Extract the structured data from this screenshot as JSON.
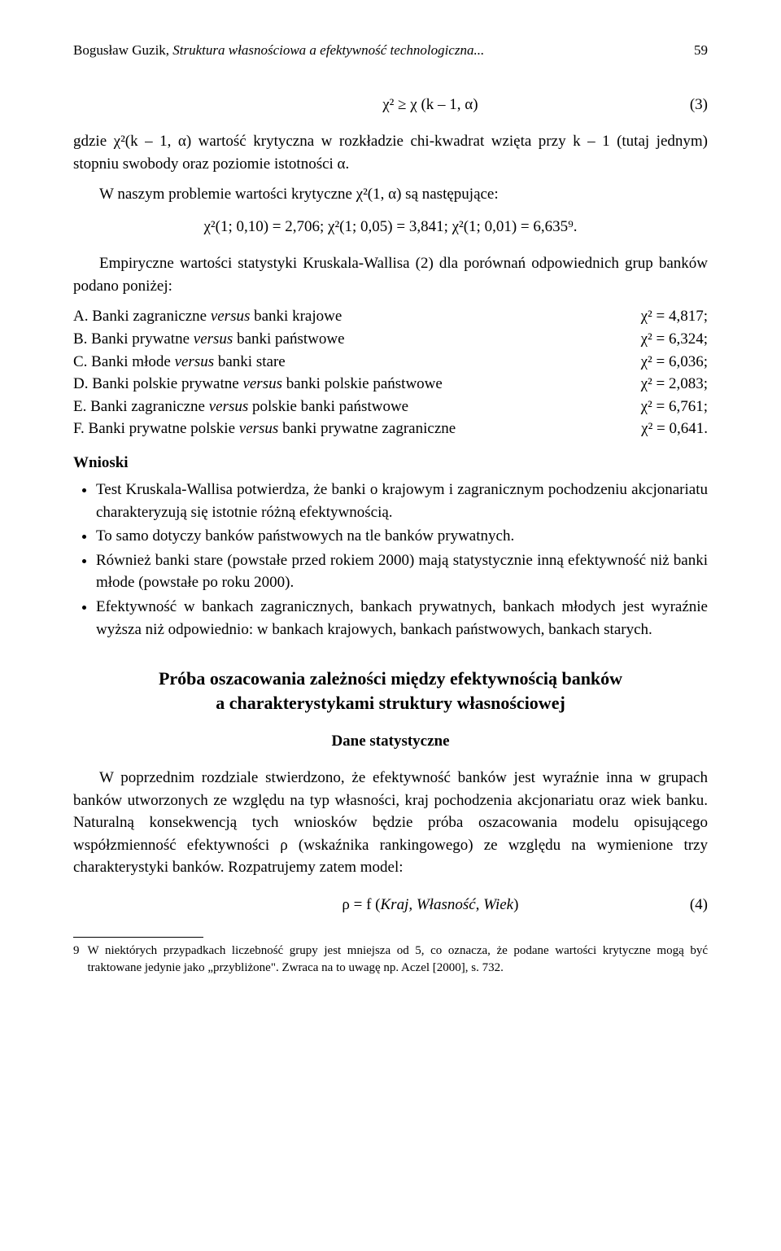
{
  "header": {
    "author": "Bogusław Guzik, ",
    "title_fragment": "Struktura własnościowa a efektywność technologiczna...",
    "page_number": "59"
  },
  "formula3": {
    "expr": "χ² ≥ χ (k – 1, α)",
    "num": "(3)"
  },
  "para1": "gdzie χ²(k – 1, α) wartość krytyczna w rozkładzie chi-kwadrat wzięta przy k – 1 (tutaj jednym) stopniu swobody oraz poziomie istotności α.",
  "para2": "W naszym problemie wartości krytyczne χ²(1, α) są następujące:",
  "chi_values": "χ²(1; 0,10) = 2,706; χ²(1; 0,05) = 3,841; χ²(1; 0,01) = 6,635⁹.",
  "para3": "Empiryczne wartości statystyki Kruskala-Wallisa (2) dla porównań odpowiednich grup banków podano poniżej:",
  "comparisons": [
    {
      "left_label": "A. Banki zagraniczne ",
      "left_italic": "versus",
      "left_rest": " banki krajowe",
      "right": "χ² = 4,817;"
    },
    {
      "left_label": "B. Banki prywatne ",
      "left_italic": "versus",
      "left_rest": " banki państwowe",
      "right": "χ² = 6,324;"
    },
    {
      "left_label": "C. Banki młode ",
      "left_italic": "versus",
      "left_rest": " banki stare",
      "right": "χ² = 6,036;"
    },
    {
      "left_label": "D. Banki polskie prywatne ",
      "left_italic": "versus",
      "left_rest": " banki polskie państwowe",
      "right": "χ² = 2,083;"
    },
    {
      "left_label": "E. Banki zagraniczne ",
      "left_italic": "versus",
      "left_rest": " polskie banki państwowe",
      "right": "χ² = 6,761;"
    },
    {
      "left_label": "F. Banki prywatne polskie ",
      "left_italic": "versus",
      "left_rest": " banki prywatne zagraniczne",
      "right": "χ² = 0,641."
    }
  ],
  "wnioski_label": "Wnioski",
  "bullets": [
    "Test Kruskala-Wallisa potwierdza, że banki o krajowym i zagranicznym pochodzeniu akcjonariatu charakteryzują się istotnie różną efektywnością.",
    "To samo dotyczy banków państwowych na tle banków prywatnych.",
    "Również banki stare (powstałe przed rokiem 2000) mają statystycznie inną efektywność niż banki młode (powstałe po roku 2000).",
    "Efektywność w bankach zagranicznych, bankach prywatnych, bankach młodych jest wyraźnie wyższa niż odpowiednio: w bankach krajowych, bankach państwowych, bankach starych."
  ],
  "section_title_line1": "Próba oszacowania zależności między efektywnością banków",
  "section_title_line2": "a charakterystykami struktury własnościowej",
  "sub_title": "Dane statystyczne",
  "para4": "W poprzednim rozdziale stwierdzono, że efektywność banków jest wyraźnie inna w grupach banków utworzonych ze względu na typ własności, kraj pochodzenia akcjonariatu oraz wiek banku. Naturalną konsekwencją tych wniosków będzie próba oszacowania modelu opisującego współzmienność efektywności ρ (wskaźnika rankingowego) ze względu na wymienione trzy charakterystyki banków. Rozpatrujemy zatem model:",
  "formula4": {
    "expr_prefix": "ρ = f (",
    "expr_args": "Kraj, Własność, Wiek",
    "expr_suffix": ")",
    "num": "(4)"
  },
  "footnote": {
    "num": "9",
    "text": "W niektórych przypadkach liczebność grupy jest mniejsza od 5, co oznacza, że podane wartości krytyczne mogą być traktowane jedynie jako „przybliżone\". Zwraca na to uwagę np. Aczel [2000], s. 732."
  }
}
